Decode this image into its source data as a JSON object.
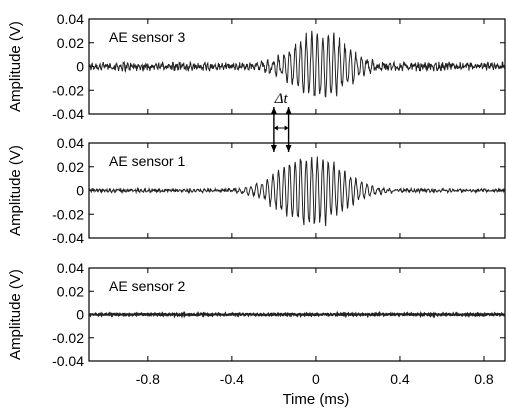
{
  "chart_data": [
    {
      "type": "line",
      "panel_label": "AE sensor 3",
      "ylabel": "Amplitude (V)",
      "ylim": [
        -0.04,
        0.04
      ],
      "yticks": [
        "0.04",
        "0.02",
        "0",
        "-0.02",
        "-0.04"
      ],
      "xlim": [
        -1.08,
        0.9
      ],
      "grid": false,
      "signal": {
        "noise_amp": 0.0028,
        "burst_center": 0.02,
        "burst_width": 0.18,
        "burst_peak": 0.031,
        "freq_per_ms": 38
      }
    },
    {
      "type": "line",
      "panel_label": "AE sensor 1",
      "ylabel": "Amplitude (V)",
      "ylim": [
        -0.04,
        0.04
      ],
      "yticks": [
        "0.04",
        "0.02",
        "0",
        "-0.02",
        "-0.04"
      ],
      "xlim": [
        -1.08,
        0.9
      ],
      "grid": false,
      "signal": {
        "noise_amp": 0.0012,
        "burst_center": -0.02,
        "burst_width": 0.2,
        "burst_peak": 0.034,
        "freq_per_ms": 38
      }
    },
    {
      "type": "line",
      "panel_label": "AE sensor 2",
      "ylabel": "Amplitude (V)",
      "ylim": [
        -0.04,
        0.04
      ],
      "yticks": [
        "0.04",
        "0.02",
        "0",
        "-0.02",
        "-0.04"
      ],
      "xlim": [
        -1.08,
        0.9
      ],
      "xticks": [
        -0.8,
        -0.4,
        0,
        0.4,
        0.8
      ],
      "xtick_labels": [
        "-0.8",
        "-0.4",
        "0",
        "0.4",
        "0.8"
      ],
      "xlabel": "Time (ms)",
      "grid": false,
      "signal": {
        "noise_amp": 0.0006,
        "burst_center": 0,
        "burst_width": 0.2,
        "burst_peak": 0,
        "freq_per_ms": 38
      }
    }
  ],
  "annotation": {
    "label": "Δt",
    "t_start": -0.2,
    "t_end": -0.13
  }
}
